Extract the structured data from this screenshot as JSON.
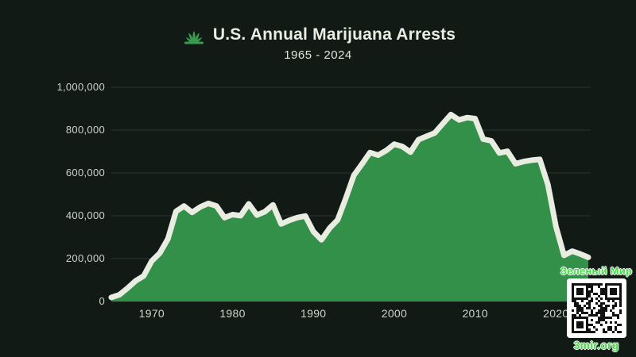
{
  "title": {
    "text": "U.S. Annual Marijuana Arrests",
    "subtitle": "1965 - 2024",
    "icon": "cannabis-leaf-icon"
  },
  "watermark": {
    "top_text": "Зеленый Мир",
    "bottom_text": "3mir.org"
  },
  "colors": {
    "background": "#111a15",
    "area_fill": "#339049",
    "line": "#e9ece0",
    "gridline": "#2b342e",
    "tick_label": "#cdd4cc",
    "title_text": "#eaede4",
    "watermark_green": "#3fe03f",
    "leaf_green": "#3a9a4e",
    "qr_background": "#ffffff",
    "qr_module": "#111111"
  },
  "chart_data": {
    "type": "area",
    "title": "U.S. Annual Marijuana Arrests",
    "subtitle": "1965 - 2024",
    "xlabel": "",
    "ylabel": "",
    "xlim": [
      1965,
      2024
    ],
    "ylim": [
      0,
      1000000
    ],
    "grid": true,
    "legend": false,
    "x_ticks": [
      1970,
      1980,
      1990,
      2000,
      2010,
      2020
    ],
    "y_ticks": [
      "1,000,000",
      "800,000",
      "600,000",
      "400,000",
      "200,000",
      "0"
    ],
    "y_tick_values": [
      1000000,
      800000,
      600000,
      400000,
      200000,
      0
    ],
    "x": [
      1965,
      1966,
      1967,
      1968,
      1969,
      1970,
      1971,
      1972,
      1973,
      1974,
      1975,
      1976,
      1977,
      1978,
      1979,
      1980,
      1981,
      1982,
      1983,
      1984,
      1985,
      1986,
      1987,
      1988,
      1989,
      1990,
      1991,
      1992,
      1993,
      1994,
      1995,
      1996,
      1997,
      1998,
      1999,
      2000,
      2001,
      2002,
      2003,
      2004,
      2005,
      2006,
      2007,
      2008,
      2009,
      2010,
      2011,
      2012,
      2013,
      2014,
      2015,
      2016,
      2017,
      2018,
      2019,
      2020,
      2021,
      2022,
      2023,
      2024
    ],
    "values": [
      18815,
      31119,
      61843,
      95870,
      118903,
      188682,
      225828,
      292179,
      420700,
      445600,
      416100,
      441100,
      457600,
      445800,
      391600,
      405600,
      400300,
      455600,
      403500,
      419400,
      451100,
      361800,
      378700,
      391600,
      398977,
      326850,
      287850,
      342314,
      380690,
      481098,
      588964,
      641642,
      695201,
      682885,
      704812,
      734497,
      723628,
      697082,
      755186,
      771605,
      786545,
      829627,
      872721,
      847863,
      858408,
      853839,
      757969,
      749825,
      693482,
      700993,
      643121,
      653249,
      659700,
      663367,
      545602,
      350150,
      215000,
      235000,
      222000,
      206000
    ]
  }
}
